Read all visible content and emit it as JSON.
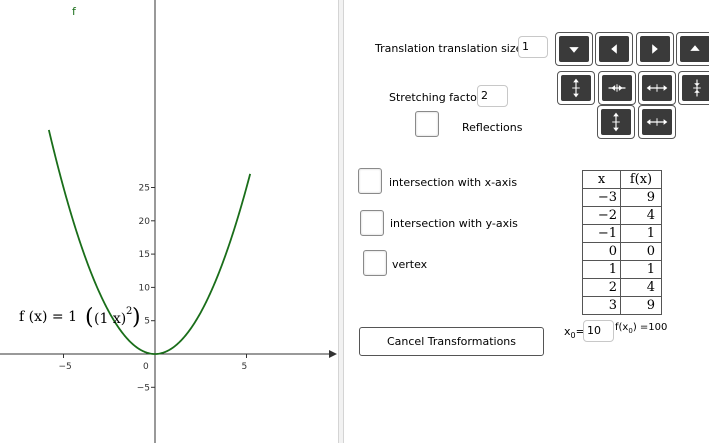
{
  "graph": {
    "function_label": "f",
    "formula": {
      "prefix": "f (x)  =  1",
      "inner": "(1 x)",
      "exponent": "2"
    },
    "x_ticks": [
      "−5",
      "0",
      "5"
    ],
    "y_ticks": [
      "25",
      "20",
      "15",
      "10",
      "5",
      "−5"
    ],
    "curve_color": "#1a6e1a"
  },
  "controls": {
    "translation_label": "Translation translation size",
    "translation_value": "1",
    "stretching_label": "Stretching factor",
    "stretching_value": "2",
    "reflections_label": "Reflections",
    "intersection_x_label": "intersection with x-axis",
    "intersection_y_label": "intersection with y-axis",
    "vertex_label": "vertex",
    "cancel_label": "Cancel Transformations",
    "x0_label": "x",
    "x0_sub": "0",
    "x0_eq": "=",
    "x0_value": "10",
    "fx0_text": "f(x",
    "fx0_sub": "0",
    "fx0_result": ") =100"
  },
  "buttons": [
    {
      "icon": "arrow-down-icon"
    },
    {
      "icon": "arrow-left-icon"
    },
    {
      "icon": "arrow-right-icon"
    },
    {
      "icon": "arrow-up-icon"
    },
    {
      "icon": "stretch-vertical-icon"
    },
    {
      "icon": "compress-horizontal-icon"
    },
    {
      "icon": "stretch-horizontal-icon"
    },
    {
      "icon": "compress-vertical-icon"
    },
    {
      "icon": "reflect-vertical-icon"
    },
    {
      "icon": "reflect-horizontal-icon"
    }
  ],
  "table": {
    "headers": [
      "x",
      "f(x)"
    ],
    "rows": [
      [
        "−3",
        "9"
      ],
      [
        "−2",
        "4"
      ],
      [
        "−1",
        "1"
      ],
      [
        "0",
        "0"
      ],
      [
        "1",
        "1"
      ],
      [
        "2",
        "4"
      ],
      [
        "3",
        "9"
      ]
    ]
  }
}
